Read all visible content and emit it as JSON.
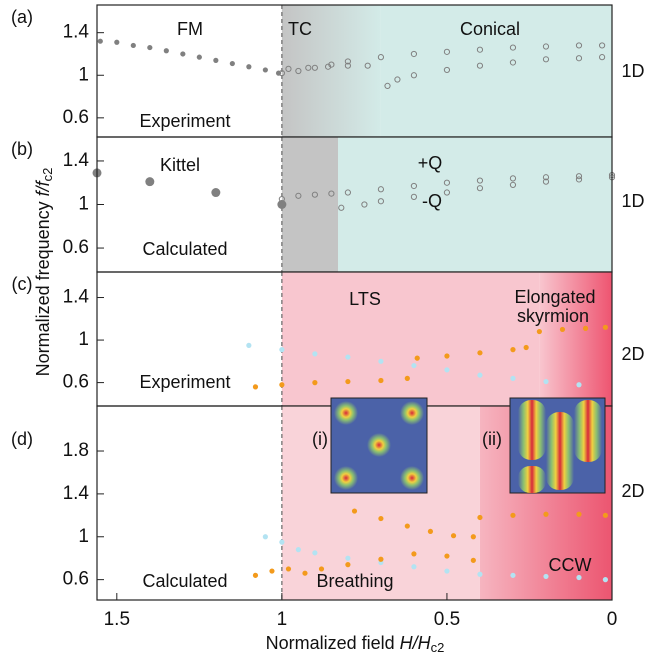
{
  "xlabel": {
    "text": "Normalized field",
    "var": "H/H",
    "sub": "c2"
  },
  "ylabel": {
    "text": "Normalized frequency",
    "var": "f/f",
    "sub": "c2"
  },
  "insets": [
    "(i)",
    "(ii)"
  ],
  "chart_data": [
    {
      "type": "scatter",
      "panel": "(a)",
      "side_label": "1D",
      "xlim": [
        1.56,
        0
      ],
      "ylim": [
        0.42,
        1.66
      ],
      "yticks": [
        0.6,
        1,
        1.4
      ],
      "vline": 1,
      "annotations": [
        "FM",
        "TC",
        "Conical",
        "Experiment"
      ],
      "regions": [
        {
          "x": [
            1,
            0.7
          ],
          "color": "#c4c4c4",
          "to_color": "#d3ebe8"
        },
        {
          "x": [
            0.7,
            0
          ],
          "color": "#d3ebe8",
          "to_color": "#d3ebe8"
        }
      ],
      "series": [
        {
          "color": "#808080",
          "marker": "filled",
          "x": [
            1.55,
            1.5,
            1.45,
            1.4,
            1.35,
            1.3,
            1.25,
            1.2,
            1.15,
            1.1,
            1.05,
            1.01
          ],
          "values": [
            1.32,
            1.31,
            1.28,
            1.26,
            1.23,
            1.2,
            1.17,
            1.14,
            1.11,
            1.08,
            1.05,
            1.02
          ]
        },
        {
          "color": "#808080",
          "marker": "open",
          "x": [
            1,
            0.95,
            0.9,
            0.85,
            0.8,
            0.7,
            0.6,
            0.5,
            0.4,
            0.3,
            0.2,
            0.1,
            0.03
          ],
          "values": [
            1.02,
            1.04,
            1.07,
            1.1,
            1.13,
            1.17,
            1.2,
            1.22,
            1.24,
            1.26,
            1.27,
            1.28,
            1.28
          ]
        },
        {
          "color": "#808080",
          "marker": "open",
          "x": [
            0.98,
            0.92,
            0.86,
            0.8,
            0.74
          ],
          "values": [
            1.06,
            1.07,
            1.08,
            1.09,
            1.09
          ]
        },
        {
          "color": "#808080",
          "marker": "open",
          "x": [
            0.68,
            0.65,
            0.6,
            0.5,
            0.4,
            0.3,
            0.2,
            0.1,
            0.03
          ],
          "values": [
            0.9,
            0.96,
            1.0,
            1.05,
            1.09,
            1.12,
            1.15,
            1.16,
            1.17
          ]
        }
      ]
    },
    {
      "type": "scatter",
      "panel": "(b)",
      "side_label": "1D",
      "xlim": [
        1.56,
        0
      ],
      "ylim": [
        0.38,
        1.62
      ],
      "yticks": [
        0.6,
        1,
        1.4
      ],
      "vline": 1,
      "annotations": [
        "Calculated"
      ],
      "regions": [
        {
          "x": [
            1,
            0.83
          ],
          "color": "#c4c4c4",
          "to_color": "#c4c4c4"
        },
        {
          "x": [
            0.83,
            0
          ],
          "color": "#d3ebe8",
          "to_color": "#d3ebe8"
        }
      ],
      "series": [
        {
          "name": "Kittel",
          "color": "#808080",
          "marker": "filled",
          "big": true,
          "x": [
            1.56,
            1.4,
            1.2,
            1.0
          ],
          "values": [
            1.29,
            1.21,
            1.11,
            1.0
          ]
        },
        {
          "name": "+Q",
          "color": "#808080",
          "marker": "open",
          "x": [
            1,
            0.95,
            0.9,
            0.85,
            0.8,
            0.7,
            0.6,
            0.5,
            0.4,
            0.3,
            0.2,
            0.1,
            0
          ],
          "values": [
            1.05,
            1.08,
            1.09,
            1.1,
            1.11,
            1.14,
            1.17,
            1.2,
            1.22,
            1.24,
            1.25,
            1.26,
            1.27
          ]
        },
        {
          "name": "-Q",
          "color": "#808080",
          "marker": "open",
          "x": [
            0.82,
            0.75,
            0.7,
            0.6,
            0.5,
            0.4,
            0.3,
            0.2,
            0.1,
            0
          ],
          "values": [
            0.97,
            1.0,
            1.03,
            1.07,
            1.11,
            1.15,
            1.18,
            1.21,
            1.23,
            1.25
          ]
        }
      ]
    },
    {
      "type": "scatter",
      "panel": "(c)",
      "side_label": "2D",
      "xlim": [
        1.56,
        0
      ],
      "ylim": [
        0.38,
        1.64
      ],
      "yticks": [
        0.6,
        1,
        1.4
      ],
      "vline": 1,
      "annotations": [
        "LTS",
        "Elongated",
        "skyrmion",
        "Experiment"
      ],
      "regions": [
        {
          "x": [
            1,
            0.22
          ],
          "color": "#f8c6cf",
          "to_color": "#f8c6cf"
        },
        {
          "x": [
            0.22,
            0
          ],
          "color": "#f8c6cf",
          "to_color": "#ee5470"
        }
      ],
      "series": [
        {
          "color": "#b3e3f2",
          "marker": "filled",
          "x": [
            1.1,
            1.0,
            0.9,
            0.8,
            0.7,
            0.6,
            0.5,
            0.4,
            0.3,
            0.2,
            0.1
          ],
          "values": [
            0.95,
            0.91,
            0.87,
            0.84,
            0.8,
            0.76,
            0.72,
            0.67,
            0.64,
            0.61,
            0.58
          ]
        },
        {
          "color": "#f39a1c",
          "marker": "filled",
          "x": [
            1.08,
            1.0,
            0.9,
            0.8,
            0.7,
            0.62
          ],
          "values": [
            0.56,
            0.58,
            0.6,
            0.61,
            0.62,
            0.64
          ]
        },
        {
          "color": "#f39a1c",
          "marker": "filled",
          "x": [
            0.59,
            0.5,
            0.4,
            0.3,
            0.26
          ],
          "values": [
            0.83,
            0.85,
            0.88,
            0.91,
            0.93
          ]
        },
        {
          "color": "#f39a1c",
          "marker": "filled",
          "x": [
            0.22,
            0.15,
            0.08,
            0.02
          ],
          "values": [
            1.08,
            1.1,
            1.11,
            1.12
          ]
        }
      ]
    },
    {
      "type": "scatter",
      "panel": "(d)",
      "side_label": "2D",
      "xlim": [
        1.56,
        0
      ],
      "ylim": [
        0.41,
        2.22
      ],
      "yticks": [
        0.6,
        1,
        1.4,
        1.8
      ],
      "xticks": [
        1.5,
        1,
        0.5,
        0
      ],
      "vline": 1,
      "annotations": [
        "Calculated"
      ],
      "regions": [
        {
          "x": [
            1,
            0.4
          ],
          "color": "#f9d3d9",
          "to_color": "#f9d3d9"
        },
        {
          "x": [
            0.4,
            0
          ],
          "color": "#f6b5c0",
          "to_color": "#ec5570"
        }
      ],
      "series": [
        {
          "name": "CCW",
          "color": "#b3e3f2",
          "marker": "filled",
          "x": [
            1.05,
            1.0,
            0.95,
            0.9,
            0.8,
            0.7,
            0.6,
            0.5,
            0.4,
            0.3,
            0.2,
            0.1,
            0.02
          ],
          "values": [
            1.0,
            0.95,
            0.88,
            0.85,
            0.8,
            0.76,
            0.72,
            0.68,
            0.65,
            0.64,
            0.63,
            0.62,
            0.6
          ]
        },
        {
          "name": "Breathing",
          "color": "#f39a1c",
          "marker": "filled",
          "x": [
            1.08,
            1.03,
            0.98,
            0.93,
            0.88,
            0.8,
            0.7,
            0.6,
            0.5,
            0.42
          ],
          "values": [
            0.64,
            0.68,
            0.7,
            0.66,
            0.7,
            0.74,
            0.79,
            0.84,
            0.82,
            0.78
          ]
        },
        {
          "color": "#f39a1c",
          "marker": "filled",
          "x": [
            0.78,
            0.7,
            0.62,
            0.55,
            0.48,
            0.42
          ],
          "values": [
            1.24,
            1.17,
            1.1,
            1.05,
            1.01,
            1.0
          ]
        },
        {
          "color": "#f39a1c",
          "marker": "filled",
          "x": [
            0.4,
            0.3,
            0.2,
            0.1,
            0.02
          ],
          "values": [
            1.18,
            1.2,
            1.21,
            1.21,
            1.2
          ]
        }
      ]
    }
  ]
}
